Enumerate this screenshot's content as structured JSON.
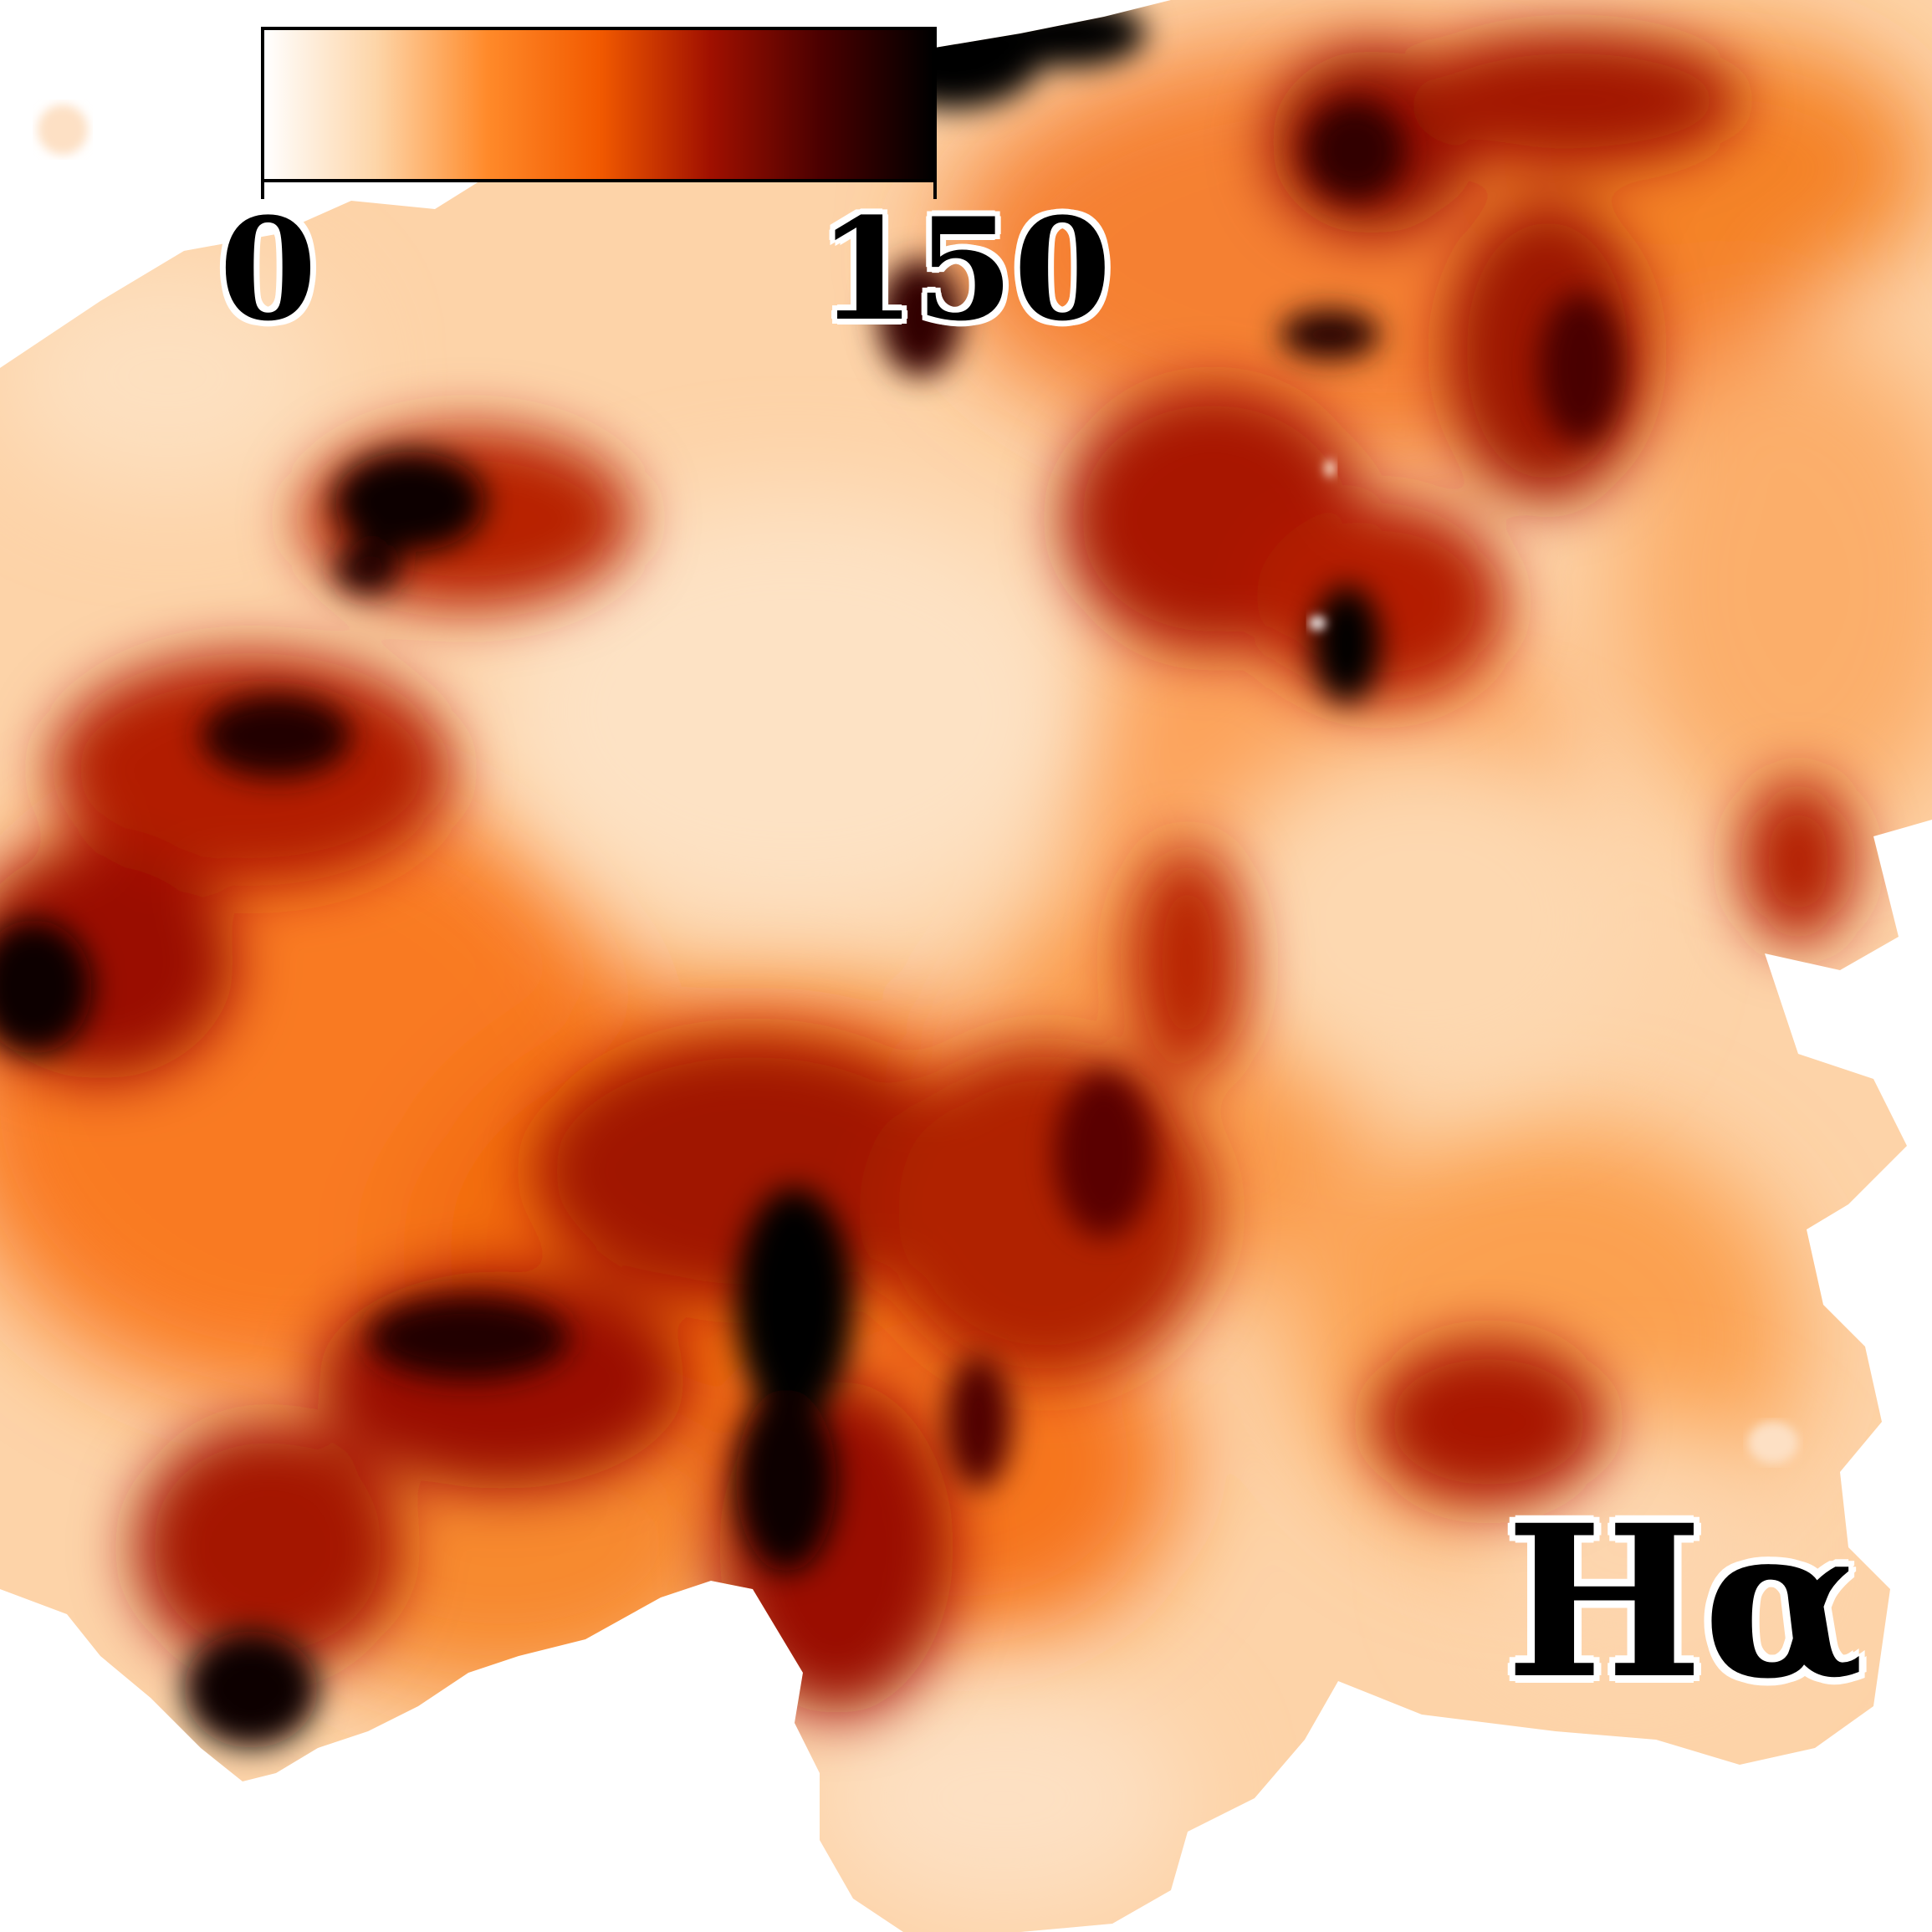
{
  "figure": {
    "map_label": "Hα",
    "colormap": {
      "stops": [
        "#ffffff",
        "#fdd5a8",
        "#ff8a2a",
        "#f25a00",
        "#a01000",
        "#4a0000",
        "#000000"
      ],
      "min_label": "0",
      "max_label": "150"
    },
    "background_color": "#ffffff"
  }
}
